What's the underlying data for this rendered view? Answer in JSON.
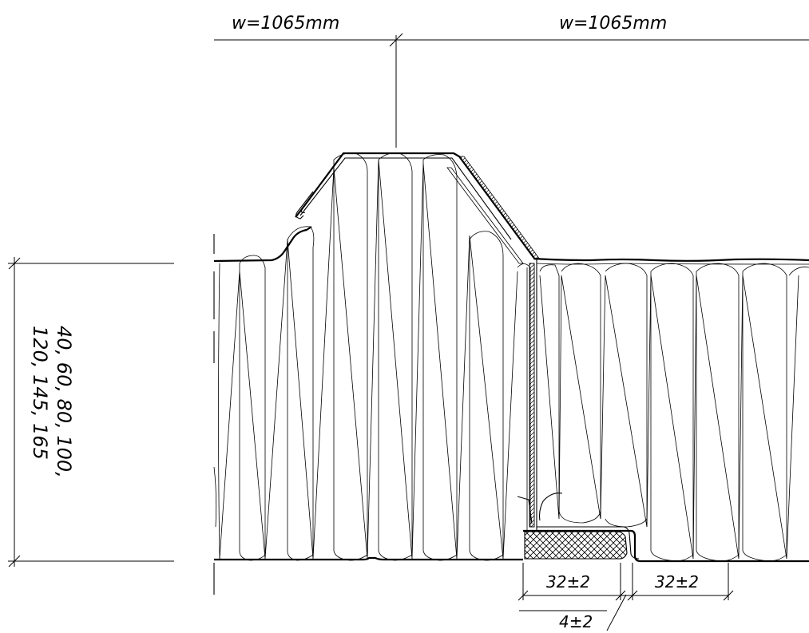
{
  "dimensions": {
    "width_left": "w=1065mm",
    "width_right": "w=1065mm",
    "thickness_line1": "40, 60, 80, 100,",
    "thickness_line2": "120, 145, 165",
    "joint_gap_left": "32±2",
    "joint_gap_right": "32±2",
    "seal_gap": "4±2"
  }
}
